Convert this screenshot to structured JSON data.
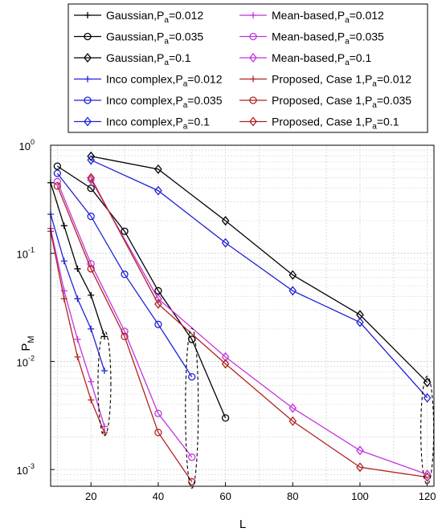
{
  "chart_data": {
    "type": "line",
    "title": "",
    "xlabel": "L",
    "ylabel": "P_M",
    "xscale": "linear",
    "yscale": "log",
    "xlim": [
      8,
      122
    ],
    "ylim": [
      0.0007,
      1
    ],
    "x_ticks": [
      20,
      40,
      60,
      80,
      100,
      120
    ],
    "y_ticks": [
      {
        "value": 1,
        "label_base": "10",
        "label_exp": "0"
      },
      {
        "value": 0.1,
        "label_base": "10",
        "label_exp": "-1"
      },
      {
        "value": 0.01,
        "label_base": "10",
        "label_exp": "-2"
      },
      {
        "value": 0.001,
        "label_base": "10",
        "label_exp": "-3"
      }
    ],
    "grid": true,
    "legend_position": "top",
    "legend_columns": 2,
    "series": [
      {
        "name": "Gaussian,P",
        "name_sub": "a",
        "name_tail": "=0.012",
        "color": "#000000",
        "marker": "plus",
        "x": [
          8,
          12,
          16,
          20,
          24
        ],
        "y": [
          0.45,
          0.18,
          0.072,
          0.041,
          0.017
        ]
      },
      {
        "name": "Gaussian,P",
        "name_sub": "a",
        "name_tail": "=0.035",
        "color": "#000000",
        "marker": "circle",
        "x": [
          10,
          20,
          30,
          40,
          50,
          60
        ],
        "y": [
          0.64,
          0.4,
          0.16,
          0.045,
          0.016,
          0.003
        ]
      },
      {
        "name": "Gaussian,P",
        "name_sub": "a",
        "name_tail": "=0.1",
        "color": "#000000",
        "marker": "diamond",
        "x": [
          20,
          40,
          60,
          80,
          100,
          120
        ],
        "y": [
          0.79,
          0.6,
          0.2,
          0.063,
          0.027,
          0.0064
        ]
      },
      {
        "name": "Inco complex,P",
        "name_sub": "a",
        "name_tail": "=0.012",
        "color": "#1f22d6",
        "marker": "plus",
        "x": [
          8,
          12,
          16,
          20,
          24
        ],
        "y": [
          0.23,
          0.085,
          0.038,
          0.02,
          0.0082
        ]
      },
      {
        "name": "Inco complex,P",
        "name_sub": "a",
        "name_tail": "=0.035",
        "color": "#1f22d6",
        "marker": "circle",
        "x": [
          10,
          20,
          30,
          40,
          50
        ],
        "y": [
          0.55,
          0.22,
          0.064,
          0.022,
          0.0072
        ]
      },
      {
        "name": "Inco complex,P",
        "name_sub": "a",
        "name_tail": "=0.1",
        "color": "#1f22d6",
        "marker": "diamond",
        "x": [
          20,
          40,
          60,
          80,
          100,
          120
        ],
        "y": [
          0.73,
          0.38,
          0.125,
          0.045,
          0.023,
          0.0046
        ]
      },
      {
        "name": "Mean-based,P",
        "name_sub": "a",
        "name_tail": "=0.012",
        "color": "#c233e0",
        "marker": "plus",
        "x": [
          8,
          12,
          16,
          20,
          24
        ],
        "y": [
          0.17,
          0.045,
          0.016,
          0.0065,
          0.0025
        ]
      },
      {
        "name": "Mean-based,P",
        "name_sub": "a",
        "name_tail": "=0.035",
        "color": "#c233e0",
        "marker": "circle",
        "x": [
          10,
          20,
          30,
          40,
          50
        ],
        "y": [
          0.46,
          0.08,
          0.019,
          0.0033,
          0.0013
        ]
      },
      {
        "name": "Mean-based,P",
        "name_sub": "a",
        "name_tail": "=0.1",
        "color": "#c233e0",
        "marker": "diamond",
        "x": [
          20,
          40,
          60,
          80,
          100,
          120
        ],
        "y": [
          0.48,
          0.038,
          0.011,
          0.0037,
          0.0015,
          0.0009
        ]
      },
      {
        "name": "Proposed, Case 1,P",
        "name_sub": "a",
        "name_tail": "=0.012",
        "color": "#b22222",
        "marker": "plus",
        "x": [
          8,
          12,
          16,
          20,
          24
        ],
        "y": [
          0.16,
          0.038,
          0.011,
          0.0044,
          0.0022
        ]
      },
      {
        "name": "Proposed, Case 1,P",
        "name_sub": "a",
        "name_tail": "=0.035",
        "color": "#b22222",
        "marker": "circle",
        "x": [
          10,
          20,
          30,
          40,
          50
        ],
        "y": [
          0.42,
          0.072,
          0.017,
          0.0022,
          0.00077
        ]
      },
      {
        "name": "Proposed, Case 1,P",
        "name_sub": "a",
        "name_tail": "=0.1",
        "color": "#b22222",
        "marker": "diamond",
        "x": [
          20,
          40,
          60,
          80,
          100,
          120
        ],
        "y": [
          0.5,
          0.034,
          0.0095,
          0.0028,
          0.00105,
          0.00085
        ]
      }
    ],
    "legend_order": [
      0,
      6,
      1,
      7,
      2,
      8,
      3,
      9,
      4,
      10,
      5,
      11
    ],
    "annotations": [
      {
        "type": "dashed-ellipse",
        "x_center": 24,
        "y_low": 0.0022,
        "y_high": 0.018
      },
      {
        "type": "dashed-ellipse",
        "x_center": 50,
        "y_low": 0.00072,
        "y_high": 0.019
      },
      {
        "type": "dashed-ellipse",
        "x_center": 120,
        "y_low": 0.00078,
        "y_high": 0.0068
      }
    ]
  }
}
